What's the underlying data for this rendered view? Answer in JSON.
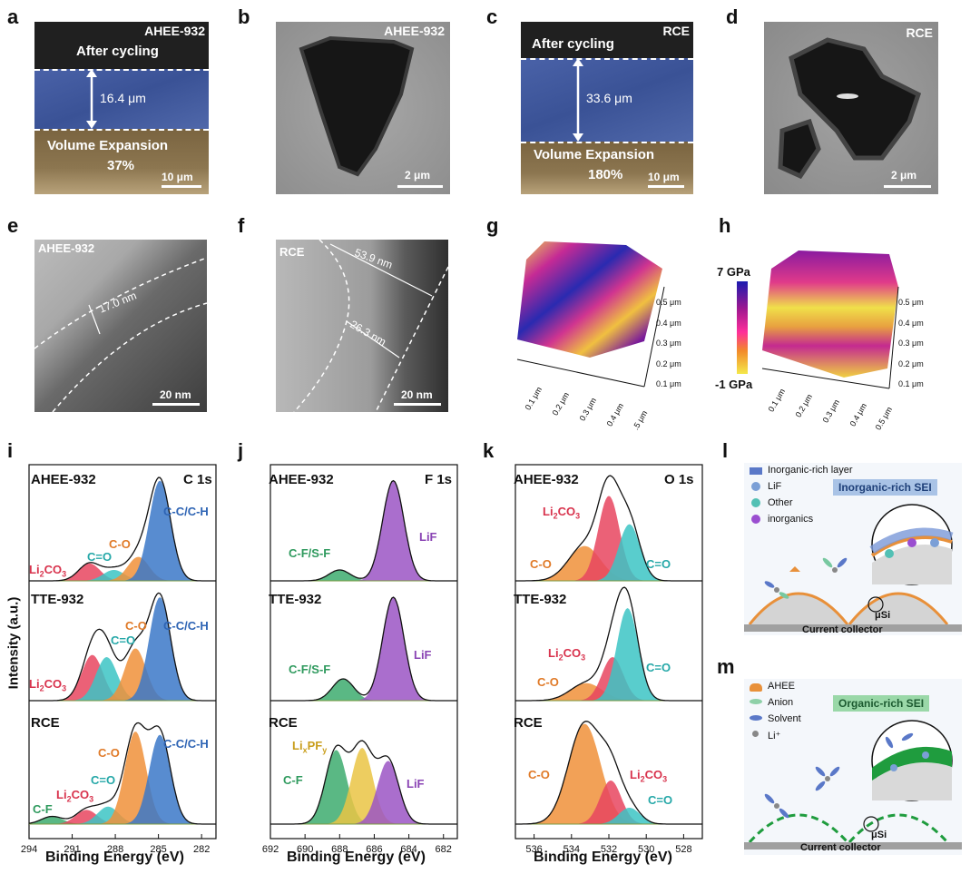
{
  "panel_letters": {
    "a": "a",
    "b": "b",
    "c": "c",
    "d": "d",
    "e": "e",
    "f": "f",
    "g": "g",
    "h": "h",
    "i": "i",
    "j": "j",
    "k": "k",
    "l": "l",
    "m": "m"
  },
  "panel_a": {
    "sample": "AHEE-932",
    "top": "After cycling",
    "thickness": "16.4 μm",
    "bottom": "Volume Expansion",
    "percent": "37%",
    "scale": "10 μm"
  },
  "panel_b": {
    "sample": "AHEE-932",
    "scale": "2 μm"
  },
  "panel_c": {
    "sample": "RCE",
    "top": "After cycling",
    "thickness": "33.6 μm",
    "bottom": "Volume Expansion",
    "percent": "180%",
    "scale": "10 μm"
  },
  "panel_d": {
    "sample": "RCE",
    "scale": "2 μm"
  },
  "panel_e": {
    "sample": "AHEE-932",
    "thickness": "17.0 nm",
    "scale": "20 nm"
  },
  "panel_f": {
    "sample": "RCE",
    "thickness1": "53.9 nm",
    "thickness2": "26.3 nm",
    "scale": "20 nm"
  },
  "colorbar": {
    "max": "7 GPa",
    "min": "-1 GPa",
    "colors": [
      "#1b1bb0",
      "#a01890",
      "#ff2f9a",
      "#f28a2a",
      "#f4e84a"
    ]
  },
  "afm_axes": {
    "y_ticks": [
      "0.5 μm",
      "0.4 μm",
      "0.3 μm",
      "0.2 μm",
      "0.1 μm"
    ],
    "g_x_ticks": [
      "0.1 μm",
      "0.2 μm",
      "0.3 μm",
      "0.4 μm",
      ".5 μm"
    ],
    "h_x_ticks": [
      "0.1 μm",
      "0.2 μm",
      "0.3 μm",
      "0.4 μm",
      "0.5 μm"
    ]
  },
  "xps_common": {
    "ylabel": "Intensity (a.u.)",
    "xlabel": "Binding Energy (eV)"
  },
  "chart_data": [
    {
      "type": "line",
      "panel": "i",
      "title": "C 1s",
      "xlabel": "Binding Energy (eV)",
      "ylabel": "Intensity (a.u.)",
      "x_ticks": [
        294,
        291,
        288,
        285,
        282
      ],
      "xlim": [
        294,
        281
      ],
      "rows": [
        {
          "name": "AHEE-932",
          "peaks": [
            {
              "label": "Li2CO3",
              "center": 289.8,
              "height": 0.16,
              "color": "#e8455f"
            },
            {
              "label": "C=O",
              "center": 288.1,
              "height": 0.1,
              "color": "#3cc4c4"
            },
            {
              "label": "C-O",
              "center": 286.4,
              "height": 0.22,
              "color": "#f0903a"
            },
            {
              "label": "C-C/C-H",
              "center": 284.9,
              "height": 0.92,
              "color": "#3b78c8"
            }
          ]
        },
        {
          "name": "TTE-932",
          "peaks": [
            {
              "label": "Li2CO3",
              "center": 289.6,
              "height": 0.42,
              "color": "#e8455f"
            },
            {
              "label": "C=O",
              "center": 288.6,
              "height": 0.4,
              "color": "#3cc4c4"
            },
            {
              "label": "C-O",
              "center": 286.6,
              "height": 0.48,
              "color": "#f0903a"
            },
            {
              "label": "C-C/C-H",
              "center": 284.9,
              "height": 0.95,
              "color": "#3b78c8"
            }
          ]
        },
        {
          "name": "RCE",
          "peaks": [
            {
              "label": "C-F",
              "center": 292.4,
              "height": 0.07,
              "color": "#3dac6e"
            },
            {
              "label": "Li2CO3",
              "center": 290.0,
              "height": 0.13,
              "color": "#e8455f"
            },
            {
              "label": "C=O",
              "center": 288.5,
              "height": 0.16,
              "color": "#3cc4c4"
            },
            {
              "label": "C-O",
              "center": 286.6,
              "height": 0.85,
              "color": "#f0903a"
            },
            {
              "label": "C-C/C-H",
              "center": 284.9,
              "height": 0.82,
              "color": "#3b78c8"
            }
          ]
        }
      ]
    },
    {
      "type": "line",
      "panel": "j",
      "title": "F 1s",
      "xlabel": "Binding Energy (eV)",
      "x_ticks": [
        692,
        690,
        688,
        686,
        684,
        682
      ],
      "xlim": [
        692,
        681.2
      ],
      "rows": [
        {
          "name": "AHEE-932",
          "peaks": [
            {
              "label": "C-F/S-F",
              "center": 688.0,
              "height": 0.1,
              "color": "#3dac6e"
            },
            {
              "label": "LiF",
              "center": 684.9,
              "height": 0.92,
              "color": "#9b55c4"
            }
          ]
        },
        {
          "name": "TTE-932",
          "peaks": [
            {
              "label": "C-F/S-F",
              "center": 687.8,
              "height": 0.2,
              "color": "#3dac6e"
            },
            {
              "label": "LiF",
              "center": 684.9,
              "height": 0.95,
              "color": "#9b55c4"
            }
          ]
        },
        {
          "name": "RCE",
          "peaks": [
            {
              "label": "C-F",
              "center": 688.2,
              "height": 0.68,
              "color": "#3dac6e"
            },
            {
              "label": "LixPFy",
              "center": 686.7,
              "height": 0.7,
              "color": "#eac444"
            },
            {
              "label": "LiF",
              "center": 685.2,
              "height": 0.58,
              "color": "#9b55c4"
            }
          ]
        }
      ]
    },
    {
      "type": "line",
      "panel": "k",
      "title": "O 1s",
      "xlabel": "Binding Energy (eV)",
      "x_ticks": [
        536,
        534,
        532,
        530,
        528
      ],
      "xlim": [
        537,
        527
      ],
      "rows": [
        {
          "name": "AHEE-932",
          "peaks": [
            {
              "label": "C-O",
              "center": 533.3,
              "height": 0.32,
              "color": "#f0903a"
            },
            {
              "label": "Li2CO3",
              "center": 532.0,
              "height": 0.78,
              "color": "#e8455f"
            },
            {
              "label": "C=O",
              "center": 530.9,
              "height": 0.52,
              "color": "#3cc4c4"
            }
          ]
        },
        {
          "name": "TTE-932",
          "peaks": [
            {
              "label": "C-O",
              "center": 533.2,
              "height": 0.16,
              "color": "#f0903a"
            },
            {
              "label": "Li2CO3",
              "center": 531.8,
              "height": 0.4,
              "color": "#e8455f"
            },
            {
              "label": "C=O",
              "center": 531.0,
              "height": 0.85,
              "color": "#3cc4c4"
            }
          ]
        },
        {
          "name": "RCE",
          "peaks": [
            {
              "label": "C-O",
              "center": 533.3,
              "height": 0.92,
              "color": "#f0903a"
            },
            {
              "label": "Li2CO3",
              "center": 531.9,
              "height": 0.4,
              "color": "#e8455f"
            },
            {
              "label": "C=O",
              "center": 530.9,
              "height": 0.15,
              "color": "#3cc4c4"
            }
          ]
        }
      ]
    }
  ],
  "xps_labels": {
    "i": {
      "title": "C 1s",
      "r1_name": "AHEE-932",
      "r2_name": "TTE-932",
      "r3_name": "RCE",
      "r1_li": "Li",
      "r1_co_eq": "C=O",
      "r1_co": "C-O",
      "r1_cc": "C-C/C-H",
      "r2_li": "Li",
      "r2_co_eq": "C=O",
      "r2_co": "C-O",
      "r2_cc": "C-C/C-H",
      "r3_cf": "C-F",
      "r3_li": "Li",
      "r3_co_eq": "C=O",
      "r3_co": "C-O",
      "r3_cc": "C-C/C-H",
      "li_sub": "2",
      "li_rest": "CO",
      "li_sub2": "3"
    },
    "j": {
      "title": "F 1s",
      "r1_name": "AHEE-932",
      "r2_name": "TTE-932",
      "r3_name": "RCE",
      "r1_cfsf": "C-F/S-F",
      "r1_lif": "LiF",
      "r2_cfsf": "C-F/S-F",
      "r2_lif": "LiF",
      "r3_cf": "C-F",
      "r3_lix": "Li",
      "r3_x": "x",
      "r3_pf": "PF",
      "r3_y": "y",
      "r3_lif": "LiF"
    },
    "k": {
      "title": "O 1s",
      "r1_name": "AHEE-932",
      "r2_name": "TTE-932",
      "r3_name": "RCE",
      "r1_co": "C-O",
      "r1_coeq": "C=O",
      "r2_co": "C-O",
      "r2_coeq": "C=O",
      "r3_co": "C-O",
      "r3_coeq": "C=O",
      "li": "Li",
      "sub": "2",
      "rest": "CO",
      "sub2": "3"
    }
  },
  "panel_l": {
    "legend1": "Inorganic-rich layer",
    "legend2": "LiF",
    "legend3": "Other",
    "legend4": "inorganics",
    "title": "Inorganic-rich SEI",
    "si": "μSi",
    "collector": "Current collector"
  },
  "panel_m": {
    "legend1": "AHEE",
    "legend2": "Anion",
    "legend3": "Solvent",
    "legend4": "Li⁺",
    "title": "Organic-rich SEI",
    "si": "μSi",
    "collector": "Current collector"
  }
}
